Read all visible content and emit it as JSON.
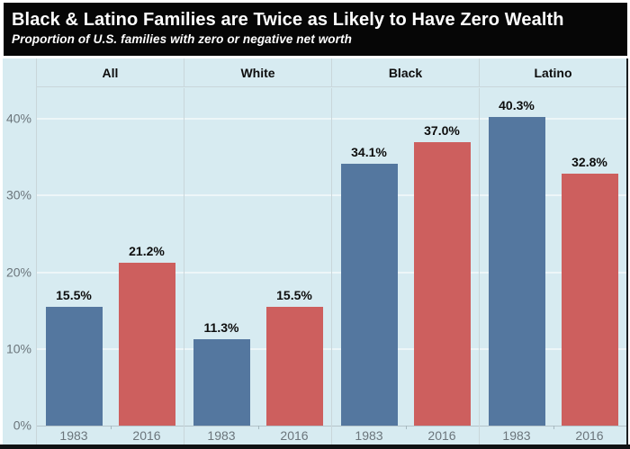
{
  "title": "Black & Latino Families are Twice as Likely to Have Zero Wealth",
  "subtitle": "Proportion of U.S. families with zero or negative net worth",
  "colors": {
    "title_bg": "#060606",
    "title_text": "#ffffff",
    "panel_background": "#d7ebf1",
    "bar_1983": "#54779f",
    "bar_2016": "#cd5f5e",
    "axis_text": "#6b757b",
    "label_text": "#0d0d0d",
    "gridline": "#edf6f8",
    "divider": "#c9d6da"
  },
  "chart_data": {
    "type": "bar",
    "title": "Black & Latino Families are Twice as Likely to Have Zero Wealth",
    "subtitle": "Proportion of U.S. families with zero or negative net worth",
    "categories": [
      "All",
      "White",
      "Black",
      "Latino"
    ],
    "series": [
      {
        "name": "1983",
        "color": "#54779f",
        "values": [
          15.5,
          11.3,
          34.1,
          40.3
        ],
        "labels": [
          "15.5%",
          "11.3%",
          "34.1%",
          "40.3%"
        ]
      },
      {
        "name": "2016",
        "color": "#cd5f5e",
        "values": [
          21.2,
          15.5,
          37.0,
          32.8
        ],
        "labels": [
          "21.2%",
          "15.5%",
          "37.0%",
          "32.8%"
        ]
      }
    ],
    "y_ticks": [
      {
        "label": "0%",
        "value": 0
      },
      {
        "label": "10%",
        "value": 10
      },
      {
        "label": "20%",
        "value": 20
      },
      {
        "label": "30%",
        "value": 30
      },
      {
        "label": "40%",
        "value": 40
      }
    ],
    "ylim": [
      0,
      44
    ],
    "unit": "%",
    "grid": true,
    "legend_position": "none",
    "x_tick_labels_per_group": [
      "1983",
      "2016"
    ]
  }
}
